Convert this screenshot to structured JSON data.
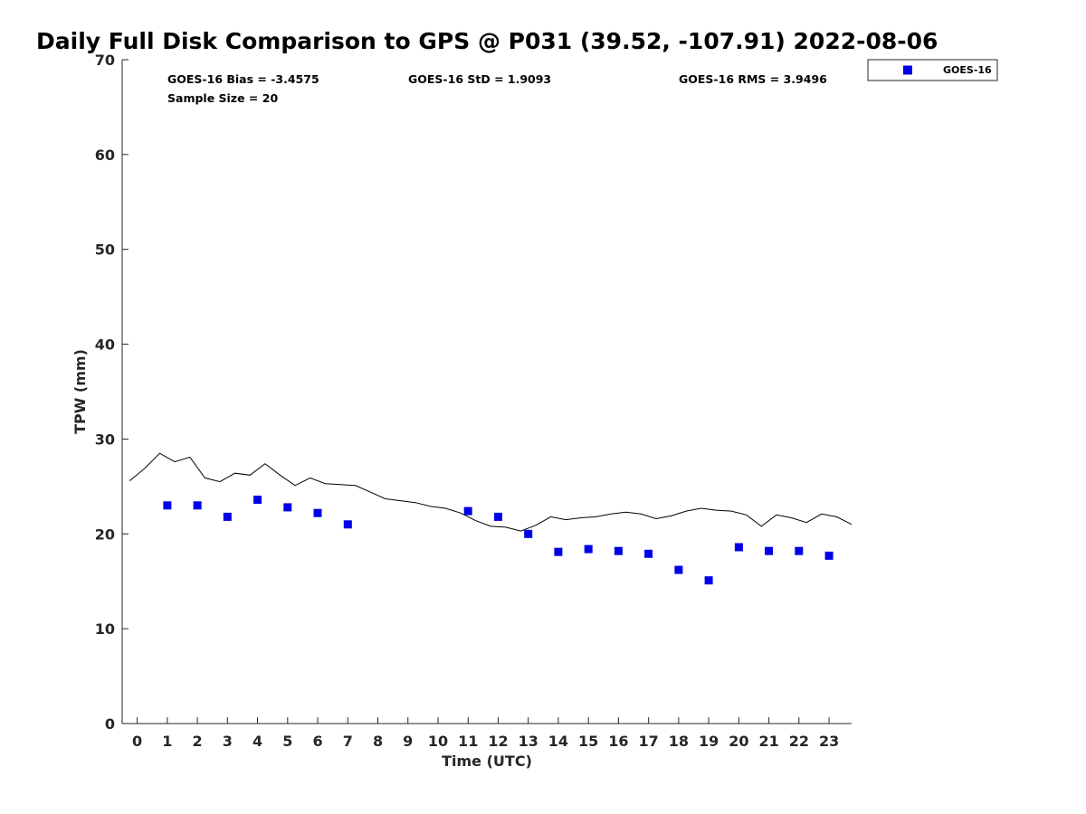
{
  "chart_data": {
    "type": "scatter",
    "title": "Daily Full Disk Comparison to GPS @ P031 (39.52, -107.91) 2022-08-06",
    "xlabel": "Time (UTC)",
    "ylabel": "TPW (mm)",
    "xlim": [
      -0.5,
      23.75
    ],
    "ylim": [
      0,
      70
    ],
    "xticks": [
      "0",
      "1",
      "2",
      "3",
      "4",
      "5",
      "6",
      "7",
      "8",
      "9",
      "10",
      "11",
      "12",
      "13",
      "14",
      "15",
      "16",
      "17",
      "18",
      "19",
      "20",
      "21",
      "22",
      "23"
    ],
    "yticks": [
      "0",
      "10",
      "20",
      "30",
      "40",
      "50",
      "60",
      "70"
    ],
    "grid": false,
    "legend": {
      "placement": "top-right-outside",
      "entries": [
        "GOES-16"
      ]
    },
    "stats": {
      "bias": "GOES-16 Bias = -3.4575",
      "std": "GOES-16 StD = 1.9093",
      "rms": "GOES-16 RMS = 3.9496",
      "sample_size": "Sample Size = 20"
    },
    "colors": {
      "goes16": "#0000e6",
      "gps": "#000000"
    },
    "series": [
      {
        "name": "GOES-16",
        "kind": "markers",
        "x": [
          1,
          2,
          3,
          4,
          5,
          6,
          7,
          11,
          12,
          13,
          14,
          15,
          16,
          17,
          18,
          19,
          20,
          21,
          22,
          23
        ],
        "y": [
          23.0,
          23.0,
          21.8,
          23.6,
          22.8,
          22.2,
          21.0,
          22.4,
          21.8,
          20.0,
          18.1,
          18.4,
          18.2,
          17.9,
          16.2,
          15.1,
          18.6,
          18.2,
          18.2,
          17.7
        ]
      },
      {
        "kind": "line",
        "x": [
          -0.25,
          0.25,
          0.75,
          1.25,
          1.75,
          2.25,
          2.75,
          3.25,
          3.75,
          4.25,
          4.75,
          5.25,
          5.75,
          6.25,
          6.75,
          7.25,
          7.75,
          8.25,
          8.75,
          9.25,
          9.75,
          10.25,
          10.75,
          11.25,
          11.75,
          12.25,
          12.75,
          13.25,
          13.75,
          14.25,
          14.75,
          15.25,
          15.75,
          16.25,
          16.75,
          17.25,
          17.75,
          18.25,
          18.75,
          19.25,
          19.75,
          20.25,
          20.75,
          21.25,
          21.75,
          22.25,
          22.75,
          23.25,
          23.75
        ],
        "y": [
          25.6,
          26.9,
          28.5,
          27.6,
          28.1,
          25.9,
          25.5,
          26.4,
          26.2,
          27.4,
          26.2,
          25.1,
          25.9,
          25.3,
          25.2,
          25.1,
          24.4,
          23.7,
          23.5,
          23.3,
          22.9,
          22.7,
          22.2,
          21.4,
          20.8,
          20.7,
          20.3,
          20.9,
          21.8,
          21.5,
          21.7,
          21.8,
          22.1,
          22.3,
          22.1,
          21.6,
          21.9,
          22.4,
          22.7,
          22.5,
          22.4,
          22.0,
          20.8,
          22.0,
          21.7,
          21.2,
          22.1,
          21.8,
          21.0
        ]
      }
    ]
  }
}
